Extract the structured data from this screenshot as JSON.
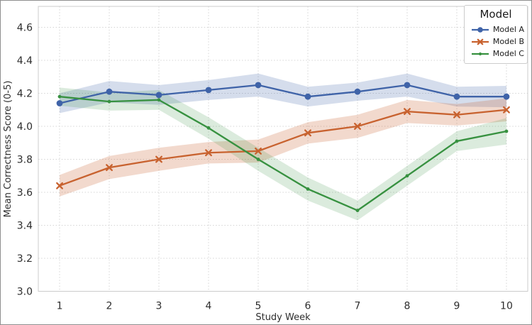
{
  "colors": {
    "frame": "#8f8f8f",
    "grid": "#d4d4d4",
    "spine": "#cccccc",
    "text": "#2e2e2e",
    "legend_border": "#cccccc",
    "legend_background": "#ffffff",
    "model_a": "#3f63a8",
    "model_b": "#c8622f",
    "model_c": "#379140"
  },
  "chart_data": {
    "type": "line",
    "title": "",
    "xlabel": "Study Week",
    "ylabel": "Mean Correctness Score (0-5)",
    "grid": true,
    "x": [
      1,
      2,
      3,
      4,
      5,
      6,
      7,
      8,
      9,
      10
    ],
    "xticks": [
      1,
      2,
      3,
      4,
      5,
      6,
      7,
      8,
      9,
      10
    ],
    "yticks": [
      3.0,
      3.2,
      3.4,
      3.6,
      3.8,
      4.0,
      4.2,
      4.4,
      4.6
    ],
    "xlim": [
      0.571,
      10.429
    ],
    "ylim": [
      3.0,
      4.727
    ],
    "legend": {
      "title": "Model",
      "position": "upper right"
    },
    "series": [
      {
        "name": "Model A",
        "marker": "circle",
        "color": "#3f63a8",
        "band_opacity": 0.22,
        "values": [
          4.14,
          4.21,
          4.19,
          4.22,
          4.25,
          4.18,
          4.21,
          4.25,
          4.18,
          4.18
        ],
        "err": [
          0.06,
          0.065,
          0.06,
          0.06,
          0.07,
          0.06,
          0.055,
          0.07,
          0.06,
          0.065
        ]
      },
      {
        "name": "Model B",
        "marker": "x",
        "color": "#c8622f",
        "band_opacity": 0.24,
        "values": [
          3.64,
          3.75,
          3.8,
          3.84,
          3.85,
          3.96,
          4.0,
          4.09,
          4.07,
          4.1
        ],
        "err": [
          0.065,
          0.07,
          0.07,
          0.065,
          0.07,
          0.065,
          0.07,
          0.07,
          0.065,
          0.07
        ]
      },
      {
        "name": "Model C",
        "marker": "dot",
        "color": "#379140",
        "band_opacity": 0.18,
        "values": [
          4.18,
          4.15,
          4.16,
          3.99,
          3.8,
          3.62,
          3.49,
          3.7,
          3.91,
          3.97
        ],
        "err": [
          0.055,
          0.055,
          0.06,
          0.065,
          0.07,
          0.07,
          0.06,
          0.06,
          0.06,
          0.08
        ]
      }
    ]
  }
}
